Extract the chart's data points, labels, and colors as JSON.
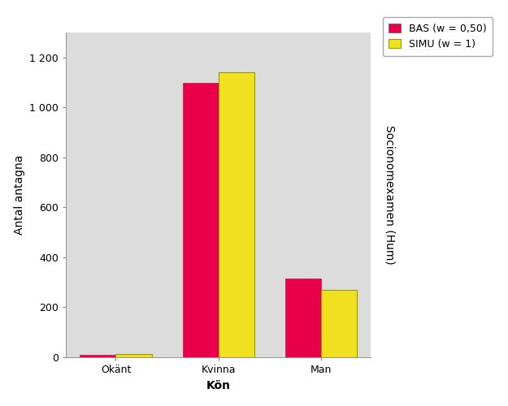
{
  "categories": [
    "Okänt",
    "Kvinna",
    "Man"
  ],
  "bas_values": [
    10,
    1100,
    315
  ],
  "simu_values": [
    12,
    1140,
    270
  ],
  "bas_color": "#E8004A",
  "simu_color": "#F0E020",
  "bar_edge_color": "#999900",
  "xlabel": "Kön",
  "ylabel": "Antal antagna",
  "right_label": "Socionomexamen (Hum)",
  "legend_bas": "BAS (w = 0,50)",
  "legend_simu": "SIMU (w = 1)",
  "ylim": [
    0,
    1300
  ],
  "yticks": [
    0,
    200,
    400,
    600,
    800,
    1000,
    1200
  ],
  "ytick_labels": [
    "0",
    "200",
    "400",
    "600",
    "800",
    "1 000",
    "1 200"
  ],
  "background_color": "#DCDCDC",
  "outer_background": "#FFFFFF",
  "bar_width": 0.35,
  "axis_fontsize": 10,
  "tick_fontsize": 9,
  "legend_fontsize": 9
}
